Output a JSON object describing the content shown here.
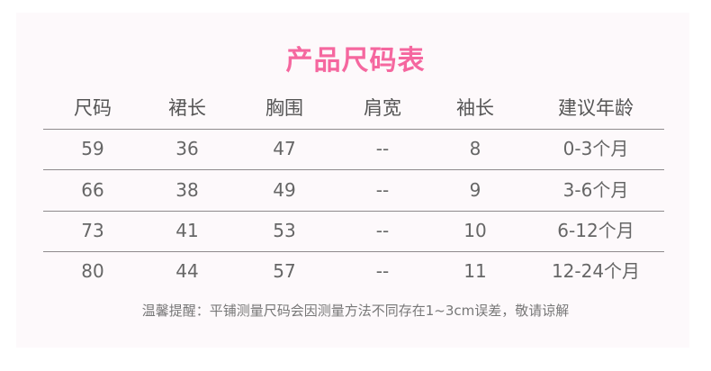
{
  "title": "产品尺码表",
  "headers": [
    "尺码",
    "裙长",
    "胸围",
    "肩宽",
    "袖长",
    "建议年龄"
  ],
  "rows": [
    [
      "59",
      "36",
      "47",
      "--",
      "8",
      "0-3个月"
    ],
    [
      "66",
      "38",
      "49",
      "--",
      "9",
      "3-6个月"
    ],
    [
      "73",
      "41",
      "53",
      "--",
      "10",
      "6-12个月"
    ],
    [
      "80",
      "44",
      "57",
      "--",
      "11",
      "12-24个月"
    ]
  ],
  "note": "温馨提醒：平铺测量尺码会因测量方法不同存在1~3cm误差，敬请谅解",
  "colors": {
    "title": "#f5679f",
    "background": "#fdf9fb",
    "text": "#666666"
  }
}
